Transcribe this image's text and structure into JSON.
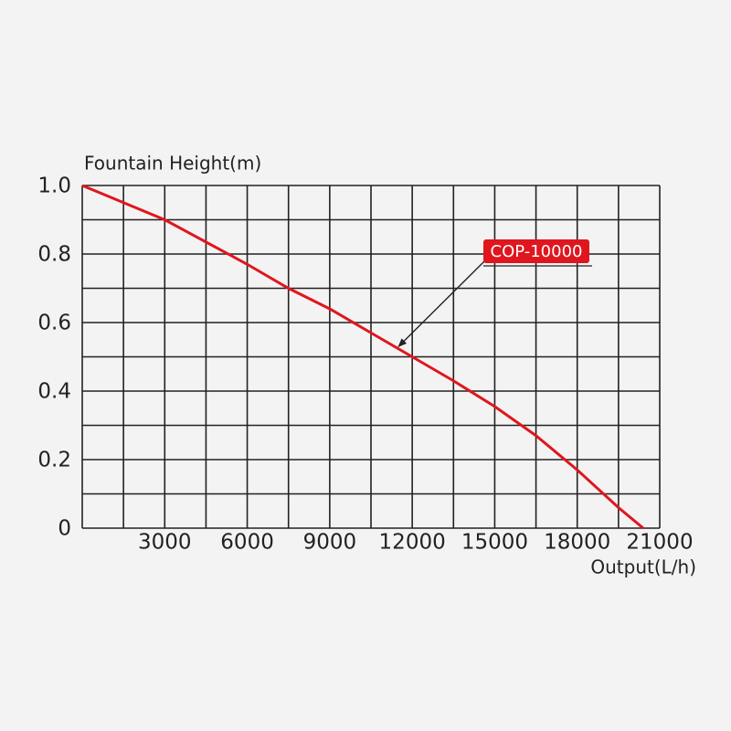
{
  "chart_data": {
    "type": "line",
    "y_label": "Fountain Height(m)",
    "x_label": "Output(L/h)",
    "series": [
      {
        "name": "COP-10000",
        "color": "#e0161e",
        "x": [
          0,
          1500,
          3000,
          4500,
          6000,
          7500,
          9000,
          10500,
          12000,
          13500,
          15000,
          16500,
          18000,
          19500,
          20400
        ],
        "values": [
          1,
          0.95,
          0.9,
          0.835,
          0.77,
          0.7,
          0.64,
          0.57,
          0.5,
          0.43,
          0.355,
          0.27,
          0.17,
          0.06,
          0
        ]
      }
    ],
    "annotation": {
      "x": 11500,
      "y": 0.53
    },
    "xlim": [
      0,
      21000
    ],
    "ylim": [
      0,
      1
    ],
    "xticks": [
      3000,
      6000,
      9000,
      12000,
      15000,
      18000,
      21000
    ],
    "yticks": [
      0,
      0.2,
      0.4,
      0.6,
      0.8,
      {
        "value": 1,
        "label": "1.0"
      }
    ],
    "xgrid": [
      0,
      1500,
      3000,
      4500,
      6000,
      7500,
      9000,
      10500,
      12000,
      13500,
      15000,
      16500,
      18000,
      19500,
      21000
    ],
    "ygrid": [
      0,
      0.1,
      0.2,
      0.3,
      0.4,
      0.5,
      0.6,
      0.7,
      0.8,
      0.9,
      1
    ],
    "grid": true
  }
}
